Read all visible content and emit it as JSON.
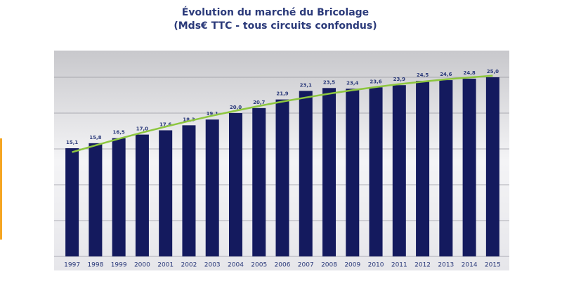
{
  "chart_data": {
    "type": "bar",
    "title": "Évolution du marché du Bricolage",
    "subtitle": "(Mds€ TTC - tous circuits confondus)",
    "categories": [
      "1997",
      "1998",
      "1999",
      "2000",
      "2001",
      "2002",
      "2003",
      "2004",
      "2005",
      "2006",
      "2007",
      "2008",
      "2009",
      "2010",
      "2011",
      "2012",
      "2013",
      "2014",
      "2015"
    ],
    "values": [
      15.1,
      15.8,
      16.5,
      17.0,
      17.6,
      18.3,
      19.1,
      20.0,
      20.7,
      21.9,
      23.1,
      23.5,
      23.4,
      23.6,
      23.9,
      24.5,
      24.6,
      24.8,
      25.0
    ],
    "value_labels": [
      "15,1",
      "15,8",
      "16,5",
      "17,0",
      "17,6",
      "18,3",
      "19,1",
      "20,0",
      "20,7",
      "21,9",
      "23,1",
      "23,5",
      "23,4",
      "23,6",
      "23,9",
      "24,5",
      "24,6",
      "24,8",
      "25,0"
    ],
    "color": "#141a5e",
    "trend_color": "#8dc63f",
    "ylim": [
      0,
      25
    ],
    "yticks": [
      0,
      5,
      10,
      15,
      20,
      25
    ],
    "grid": true
  }
}
